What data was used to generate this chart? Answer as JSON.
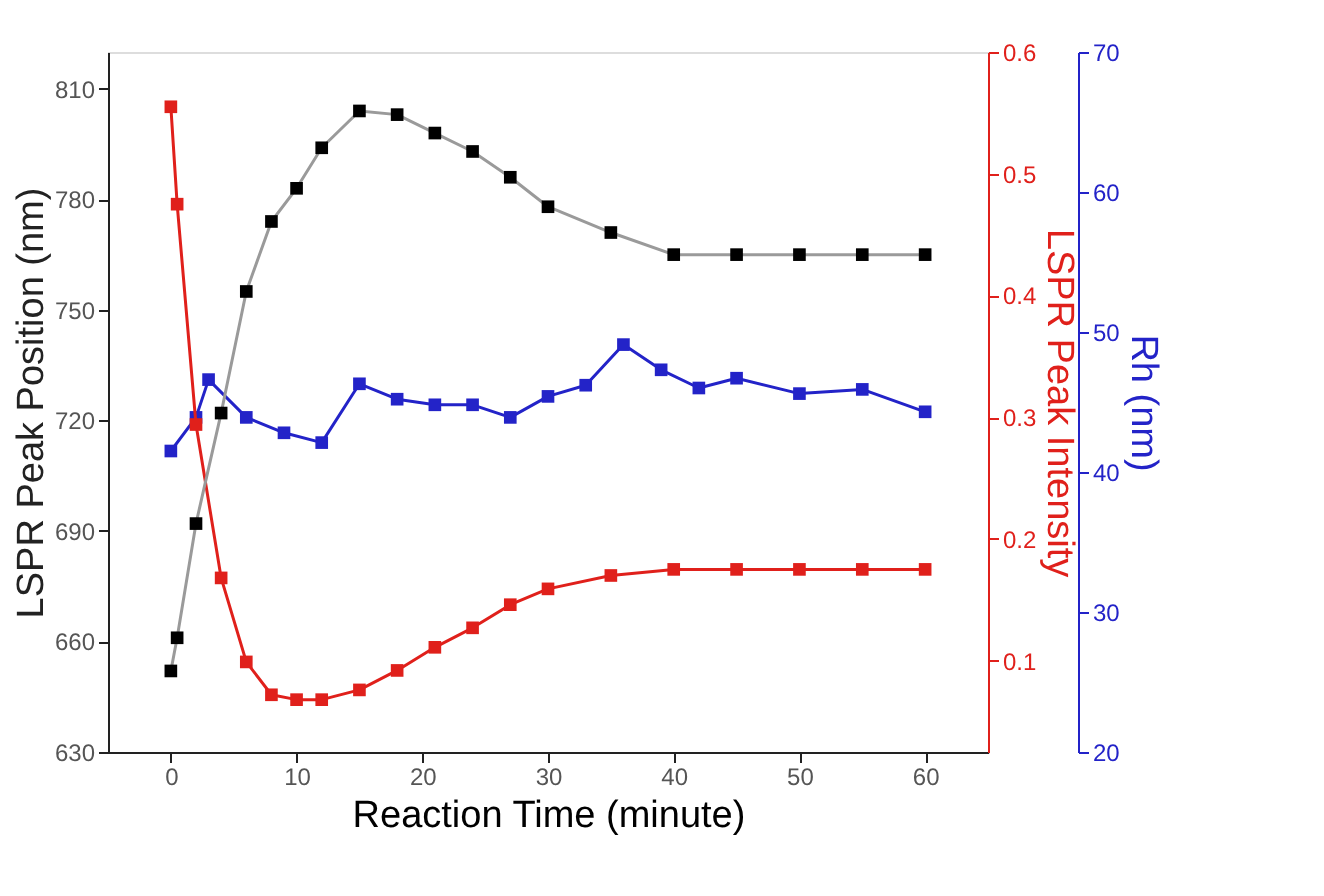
{
  "chart_data": {
    "type": "line",
    "xlabel": "Reaction Time (minute)",
    "ylabel": "LSPR Peak Position (nm)",
    "y2label": "LSPR Peak Intensity",
    "y3label": "Rh (nm)",
    "marker": "square",
    "line_style": "solid",
    "grid": false,
    "xlim": [
      -5,
      65
    ],
    "xticks": [
      0,
      10,
      20,
      30,
      40,
      50,
      60
    ],
    "ylim": [
      630,
      820
    ],
    "yticks": [
      630,
      660,
      690,
      720,
      750,
      780,
      810
    ],
    "y2lim": [
      0.025,
      0.6
    ],
    "y2ticks": [
      0.1,
      0.2,
      0.3,
      0.4,
      0.5,
      0.6
    ],
    "y3lim": [
      20,
      70
    ],
    "y3ticks": [
      20,
      30,
      40,
      50,
      60,
      70
    ],
    "series": [
      {
        "color": "#000000",
        "axis": "y",
        "x": [
          0,
          0.5,
          2,
          4,
          6,
          8,
          10,
          12,
          15,
          18,
          21,
          24,
          27,
          30,
          35,
          40,
          45,
          50,
          55,
          60
        ],
        "values": [
          652,
          661,
          692,
          722,
          755,
          774,
          783,
          794,
          804,
          803,
          798,
          793,
          786,
          778,
          771,
          765,
          765,
          765,
          765,
          765
        ]
      },
      {
        "color": "#e0201b",
        "axis": "y2",
        "x": [
          0,
          0.5,
          2,
          4,
          6,
          8,
          10,
          12,
          15,
          18,
          21,
          24,
          27,
          30,
          35,
          40,
          45,
          50,
          55,
          60
        ],
        "values": [
          0.555,
          0.475,
          0.294,
          0.168,
          0.099,
          0.072,
          0.068,
          0.068,
          0.076,
          0.092,
          0.111,
          0.127,
          0.146,
          0.159,
          0.17,
          0.175,
          0.175,
          0.175,
          0.175,
          0.175
        ]
      },
      {
        "color": "#2323c8",
        "axis": "y3",
        "x": [
          0,
          2,
          3,
          6,
          9,
          12,
          15,
          18,
          21,
          24,
          27,
          30,
          33,
          36,
          39,
          42,
          45,
          50,
          55,
          60
        ],
        "values": [
          41.5,
          43.9,
          46.6,
          43.9,
          42.8,
          42.1,
          46.3,
          45.2,
          44.8,
          44.8,
          43.9,
          45.4,
          46.2,
          49.1,
          47.3,
          46.0,
          46.7,
          45.6,
          45.9,
          44.3
        ]
      }
    ]
  }
}
